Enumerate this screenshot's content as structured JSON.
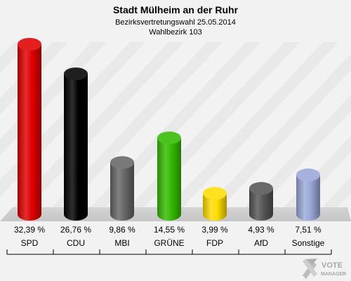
{
  "header": {
    "title": "Stadt Mülheim an der Ruhr",
    "subtitle": "Bezirksvertretungswahl 25.05.2014",
    "district": "Wahlbezirk 103"
  },
  "logo": {
    "line1": "VOTE",
    "line2": "MANAGER"
  },
  "chart_data": {
    "type": "bar",
    "title": "Stadt Mülheim an der Ruhr",
    "subtitle": "Bezirksvertretungswahl 25.05.2014",
    "categories": [
      "SPD",
      "CDU",
      "MBI",
      "GRÜNE",
      "FDP",
      "AfD",
      "Sonstige"
    ],
    "values": [
      32.39,
      26.76,
      9.86,
      14.55,
      3.99,
      4.93,
      7.51
    ],
    "value_labels": [
      "32,39 %",
      "26,76 %",
      "9,86 %",
      "14,55 %",
      "3,99 %",
      "4,93 %",
      "7,51 %"
    ],
    "colors": [
      "#e00000",
      "#000000",
      "#666666",
      "#33bb00",
      "#ffdd00",
      "#555555",
      "#9aa8d8"
    ],
    "xlabel": "",
    "ylabel": "",
    "ylim": [
      0,
      32.39
    ],
    "grid": false,
    "legend": "none"
  }
}
